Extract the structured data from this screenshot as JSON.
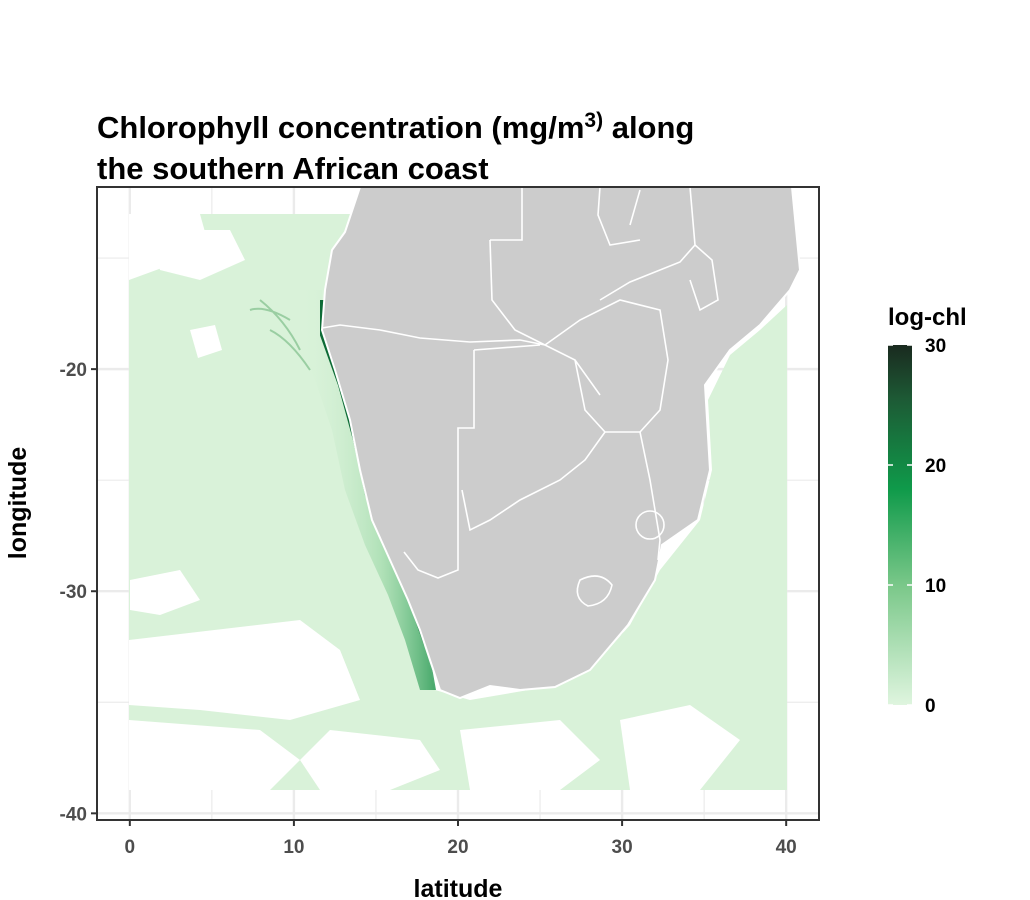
{
  "title": {
    "line1_pre": "Chlorophyll concentration (mg/m",
    "line1_sup": "3)",
    "line1_post": " along",
    "line2": "the  southern   African  coast"
  },
  "axes": {
    "x_title": "latitude",
    "y_title": "longitude",
    "x_ticks": [
      "0",
      "10",
      "20",
      "30",
      "40"
    ],
    "y_ticks": [
      "-20",
      "-30",
      "-40"
    ]
  },
  "legend": {
    "title": "log-chl",
    "ticks": [
      "30",
      "20",
      "10",
      "0"
    ]
  },
  "chart_data": {
    "type": "heatmap",
    "title": "Chlorophyll concentration (mg/m3) along the southern African coast",
    "xlabel": "latitude",
    "ylabel": "longitude",
    "xlim": [
      -2,
      42
    ],
    "ylim": [
      -40.3,
      -11.8
    ],
    "x_ticks": [
      0,
      10,
      20,
      30,
      40
    ],
    "y_ticks": [
      -20,
      -30,
      -40
    ],
    "grid": true,
    "legend_position": "right",
    "color_scale": {
      "name": "log-chl",
      "min": 0,
      "max": 30,
      "ticks": [
        0,
        10,
        20,
        30
      ]
    },
    "colors": {
      "low": "#d9f2d9",
      "mid": "#3aa85a",
      "high": "#009144",
      "max": "#1a2a1f",
      "land": "#cccccc",
      "border": "#ffffff",
      "grid": "#ebebeb"
    }
  }
}
